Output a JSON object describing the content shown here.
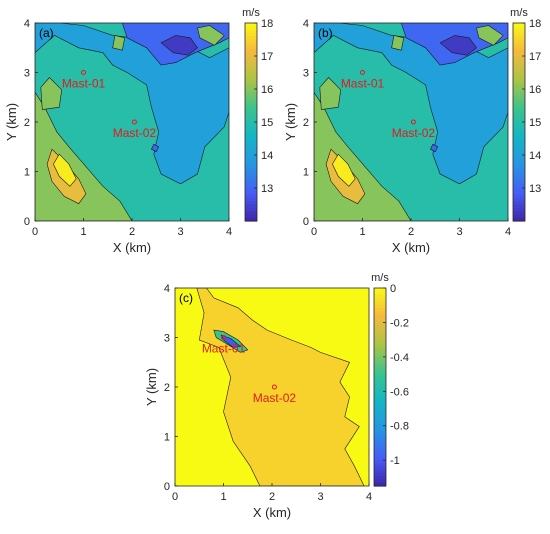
{
  "chart_data": [
    {
      "type": "heatmap",
      "panel_label": "(a)",
      "xlabel": "X (km)",
      "ylabel": "Y (km)",
      "xlim": [
        0,
        4
      ],
      "ylim": [
        0,
        4
      ],
      "xticks": [
        "0",
        "1",
        "2",
        "3",
        "4"
      ],
      "yticks": [
        "0",
        "1",
        "2",
        "3",
        "4"
      ],
      "colorbar": {
        "unit": "m/s",
        "min": 12,
        "max": 18,
        "ticks": [
          "13",
          "14",
          "15",
          "16",
          "17",
          "18"
        ]
      },
      "markers": [
        {
          "label": "Mast-01",
          "x": 1.0,
          "y": 3.0
        },
        {
          "label": "Mast-02",
          "x": 2.05,
          "y": 2.0
        }
      ],
      "field_regions": [
        {
          "value": 15.0,
          "region": "background"
        },
        {
          "value": 14.0,
          "region": "central-east and north-west band"
        },
        {
          "value": 13.0,
          "region": "north"
        },
        {
          "value": 12.3,
          "region": "north-east core"
        },
        {
          "value": 16.0,
          "region": "west and south-west"
        },
        {
          "value": 17.0,
          "region": "south-west core"
        },
        {
          "value": 17.8,
          "region": "south-west peak"
        }
      ]
    },
    {
      "type": "heatmap",
      "panel_label": "(b)",
      "xlabel": "X (km)",
      "ylabel": "Y (km)",
      "xlim": [
        0,
        4
      ],
      "ylim": [
        0,
        4
      ],
      "xticks": [
        "0",
        "1",
        "2",
        "3",
        "4"
      ],
      "yticks": [
        "0",
        "1",
        "2",
        "3",
        "4"
      ],
      "colorbar": {
        "unit": "m/s",
        "min": 12,
        "max": 18,
        "ticks": [
          "13",
          "14",
          "15",
          "16",
          "17",
          "18"
        ]
      },
      "markers": [
        {
          "label": "Mast-01",
          "x": 1.0,
          "y": 3.0
        },
        {
          "label": "Mast-02",
          "x": 2.05,
          "y": 2.0
        }
      ],
      "field_regions": [
        {
          "value": 15.0,
          "region": "background"
        },
        {
          "value": 14.0,
          "region": "central-east and north-west band"
        },
        {
          "value": 13.0,
          "region": "north"
        },
        {
          "value": 12.3,
          "region": "north-east core"
        },
        {
          "value": 16.0,
          "region": "west and south-west"
        },
        {
          "value": 17.0,
          "region": "south-west core"
        },
        {
          "value": 17.8,
          "region": "south-west peak"
        }
      ]
    },
    {
      "type": "heatmap",
      "panel_label": "(c)",
      "xlabel": "X (km)",
      "ylabel": "Y (km)",
      "xlim": [
        0,
        4
      ],
      "ylim": [
        0,
        4
      ],
      "xticks": [
        "0",
        "1",
        "2",
        "3",
        "4"
      ],
      "yticks": [
        "0",
        "1",
        "2",
        "3",
        "4"
      ],
      "colorbar": {
        "unit": "m/s",
        "min": -1.15,
        "max": 0,
        "ticks": [
          "0",
          "-0.2",
          "-0.4",
          "-0.6",
          "-0.8",
          "-1"
        ]
      },
      "markers": [
        {
          "label": "Mast-01",
          "x": 1.0,
          "y": 3.0
        },
        {
          "label": "Mast-02",
          "x": 2.05,
          "y": 2.0
        }
      ],
      "field_regions": [
        {
          "value": 0.0,
          "region": "west and north-east"
        },
        {
          "value": -0.1,
          "region": "central band"
        },
        {
          "value": -0.5,
          "region": "wake near Mast-01"
        },
        {
          "value": -1.0,
          "region": "wake core near Mast-01"
        }
      ]
    }
  ]
}
